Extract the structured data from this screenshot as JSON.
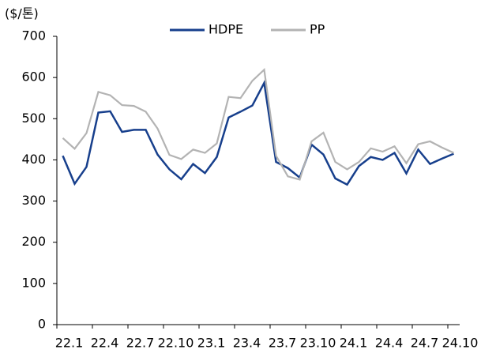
{
  "chart_data": {
    "type": "line",
    "y_label": "($/톤)",
    "categories": [
      "22.1",
      null,
      null,
      "22.4",
      null,
      null,
      "22.7",
      null,
      null,
      "22.10",
      null,
      null,
      "23.1",
      null,
      null,
      "23.4",
      null,
      null,
      "23.7",
      null,
      null,
      "23.10",
      null,
      null,
      "24.1",
      null,
      null,
      "24.4",
      null,
      null,
      "24.7",
      null,
      null,
      "24.10"
    ],
    "series": [
      {
        "name": "HDPE",
        "color": "#173f8c",
        "values": [
          410,
          342,
          383,
          515,
          518,
          468,
          473,
          473,
          413,
          377,
          353,
          390,
          368,
          407,
          503,
          517,
          532,
          587,
          395,
          380,
          357,
          437,
          413,
          355,
          340,
          385,
          407,
          400,
          417,
          367,
          425,
          390,
          403,
          415
        ]
      },
      {
        "name": "PP",
        "color": "#b3b3b3",
        "values": [
          453,
          427,
          465,
          565,
          557,
          533,
          531,
          517,
          476,
          412,
          402,
          425,
          417,
          440,
          553,
          550,
          592,
          619,
          410,
          360,
          352,
          445,
          466,
          395,
          377,
          395,
          428,
          420,
          433,
          392,
          438,
          445,
          430,
          417
        ]
      }
    ],
    "ylim": [
      0,
      700
    ],
    "yticks": [
      0,
      100,
      200,
      300,
      400,
      500,
      600,
      700
    ],
    "legend": "top"
  }
}
